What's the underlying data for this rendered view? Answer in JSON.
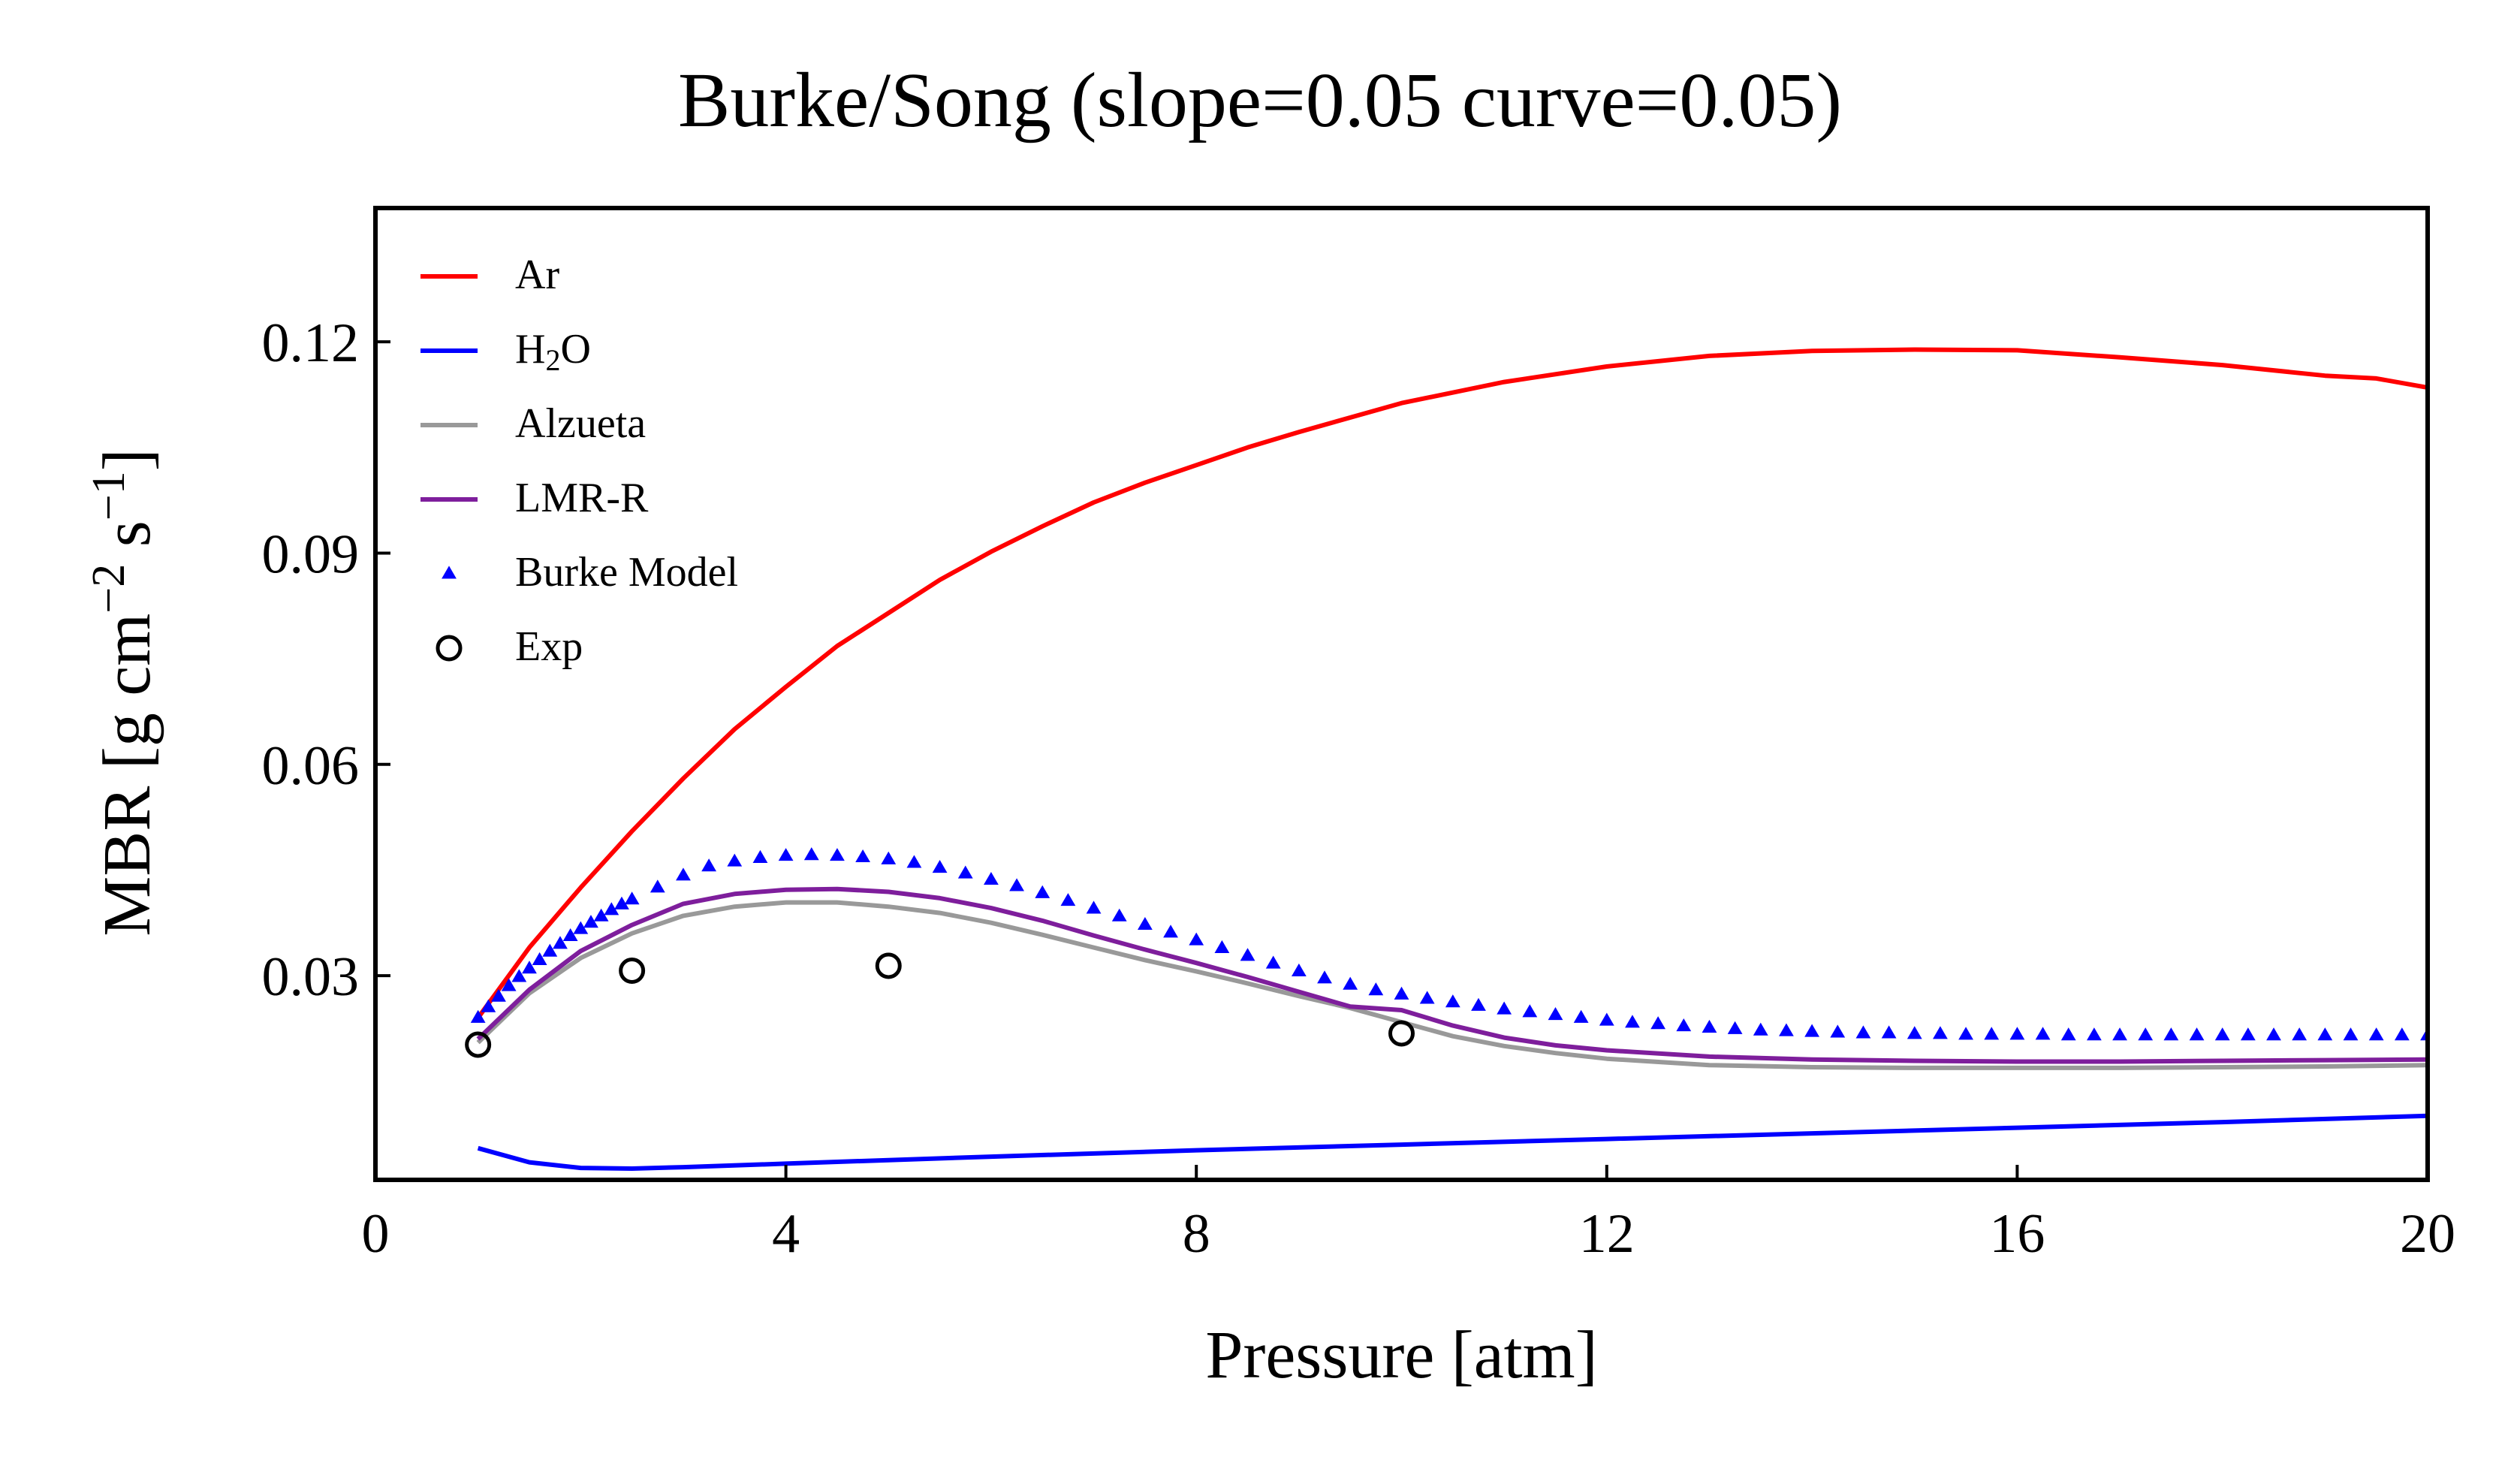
{
  "chart_data": {
    "type": "line",
    "title": "Burke/Song (slope=0.05 curve=0.05)",
    "xlabel": "Pressure [atm]",
    "ylabel": {
      "parts": [
        "MBR [g cm",
        "−2",
        " s",
        "−1",
        "]"
      ]
    },
    "xlim": [
      0,
      20
    ],
    "ylim": [
      0.001,
      0.139
    ],
    "x_ticks": [
      0,
      4,
      8,
      12,
      16,
      20
    ],
    "x_tick_labels": [
      "0",
      "4",
      "8",
      "12",
      "16",
      "20"
    ],
    "y_ticks": [
      0.03,
      0.06,
      0.09,
      0.12
    ],
    "y_tick_labels": [
      "0.03",
      "0.06",
      "0.09",
      "0.12"
    ],
    "grid": false,
    "legend_position": "top-left",
    "series": [
      {
        "name": "Ar",
        "style": "line",
        "color": "#ff0000",
        "x": [
          1,
          1.5,
          2,
          2.5,
          3,
          3.5,
          4,
          4.5,
          5,
          5.5,
          6,
          6.5,
          7,
          7.5,
          8,
          8.5,
          9,
          10,
          11,
          12,
          13,
          14,
          15,
          16,
          17,
          18,
          19,
          19.5,
          20
        ],
        "y": [
          0.024,
          0.034,
          0.0425,
          0.0505,
          0.058,
          0.065,
          0.071,
          0.0768,
          0.0815,
          0.0862,
          0.0902,
          0.0938,
          0.0972,
          0.1,
          0.1025,
          0.105,
          0.1072,
          0.1113,
          0.1143,
          0.1165,
          0.118,
          0.1187,
          0.1189,
          0.1188,
          0.1178,
          0.1167,
          0.1152,
          0.1148,
          0.1135
        ]
      },
      {
        "name": "H₂O",
        "legend_parts": [
          "H",
          "2",
          "O"
        ],
        "style": "line",
        "color": "#0000ff",
        "x": [
          1,
          1.5,
          2,
          2.5,
          3,
          4,
          5,
          6,
          8,
          10,
          12,
          14,
          16,
          18,
          20
        ],
        "y": [
          0.0055,
          0.0035,
          0.0027,
          0.0026,
          0.0028,
          0.0033,
          0.0038,
          0.0043,
          0.0052,
          0.006,
          0.0068,
          0.0076,
          0.0084,
          0.0092,
          0.0101
        ]
      },
      {
        "name": "Alzueta",
        "style": "line",
        "color": "#999999",
        "x": [
          1,
          1.5,
          2,
          2.5,
          3,
          3.5,
          4,
          4.5,
          5,
          5.5,
          6,
          6.5,
          7,
          7.5,
          8,
          8.5,
          9,
          9.5,
          10,
          10.5,
          11,
          11.5,
          12,
          13,
          14,
          15,
          16,
          17,
          18,
          19,
          20
        ],
        "y": [
          0.0205,
          0.0275,
          0.0325,
          0.036,
          0.0385,
          0.0398,
          0.0404,
          0.0404,
          0.0398,
          0.0389,
          0.0375,
          0.0358,
          0.034,
          0.0322,
          0.0306,
          0.0289,
          0.0271,
          0.0254,
          0.0234,
          0.0214,
          0.02,
          0.019,
          0.0182,
          0.0173,
          0.017,
          0.0169,
          0.0169,
          0.0169,
          0.017,
          0.0171,
          0.0173
        ]
      },
      {
        "name": "LMR-R",
        "style": "line",
        "color": "#7e1e9c",
        "x": [
          1,
          1.5,
          2,
          2.5,
          3,
          3.5,
          4,
          4.5,
          5,
          5.5,
          6,
          6.5,
          7,
          7.5,
          8,
          8.5,
          9,
          9.5,
          10,
          10.5,
          11,
          11.5,
          12,
          13,
          14,
          15,
          16,
          17,
          18,
          19,
          20
        ],
        "y": [
          0.021,
          0.028,
          0.0335,
          0.0372,
          0.0402,
          0.0416,
          0.0422,
          0.0423,
          0.0419,
          0.041,
          0.0396,
          0.0378,
          0.0357,
          0.0337,
          0.0318,
          0.0298,
          0.0277,
          0.0256,
          0.0251,
          0.0229,
          0.0212,
          0.0201,
          0.0194,
          0.0185,
          0.0181,
          0.0179,
          0.0178,
          0.0178,
          0.0179,
          0.018,
          0.0181
        ]
      },
      {
        "name": "Burke Model",
        "style": "triangle-markers",
        "color": "#0000ff",
        "x": [
          1,
          1.1,
          1.2,
          1.3,
          1.4,
          1.5,
          1.6,
          1.7,
          1.8,
          1.9,
          2,
          2.1,
          2.2,
          2.3,
          2.4,
          2.5,
          2.75,
          3,
          3.25,
          3.5,
          3.75,
          4,
          4.25,
          4.5,
          4.75,
          5,
          5.25,
          5.5,
          5.75,
          6,
          6.25,
          6.5,
          6.75,
          7,
          7.25,
          7.5,
          7.75,
          8,
          8.25,
          8.5,
          8.75,
          9,
          9.25,
          9.5,
          9.75,
          10,
          10.25,
          10.5,
          10.75,
          11,
          11.25,
          11.5,
          11.75,
          12,
          12.25,
          12.5,
          12.75,
          13,
          13.25,
          13.5,
          13.75,
          14,
          14.25,
          14.5,
          14.75,
          15,
          15.25,
          15.5,
          15.75,
          16,
          16.25,
          16.5,
          16.75,
          17,
          17.25,
          17.5,
          17.75,
          18,
          18.25,
          18.5,
          18.75,
          19,
          19.25,
          19.5,
          19.75,
          20
        ],
        "y": [
          0.024,
          0.0255,
          0.027,
          0.0285,
          0.0298,
          0.031,
          0.0322,
          0.0334,
          0.0345,
          0.0356,
          0.0366,
          0.0375,
          0.0384,
          0.0393,
          0.0401,
          0.0408,
          0.0425,
          0.0442,
          0.0455,
          0.0462,
          0.0467,
          0.047,
          0.0471,
          0.047,
          0.0468,
          0.0465,
          0.046,
          0.0453,
          0.0445,
          0.0436,
          0.0427,
          0.0417,
          0.0406,
          0.0395,
          0.0384,
          0.0372,
          0.0361,
          0.035,
          0.0339,
          0.0328,
          0.0317,
          0.0306,
          0.0296,
          0.0287,
          0.0279,
          0.0273,
          0.0267,
          0.0262,
          0.0257,
          0.0252,
          0.0248,
          0.0244,
          0.024,
          0.0236,
          0.0233,
          0.0231,
          0.0228,
          0.0226,
          0.0224,
          0.0222,
          0.0221,
          0.022,
          0.0219,
          0.0218,
          0.0218,
          0.0217,
          0.0217,
          0.0216,
          0.0216,
          0.0216,
          0.0216,
          0.0215,
          0.0215,
          0.0215,
          0.0215,
          0.0215,
          0.0215,
          0.0215,
          0.0215,
          0.0215,
          0.0215,
          0.0215,
          0.0215,
          0.0215,
          0.0215,
          0.0215
        ]
      },
      {
        "name": "Exp",
        "style": "circle-markers",
        "color": "#000000",
        "x": [
          1,
          2.5,
          5,
          10
        ],
        "y": [
          0.0202,
          0.0307,
          0.0314,
          0.0218
        ]
      }
    ]
  }
}
